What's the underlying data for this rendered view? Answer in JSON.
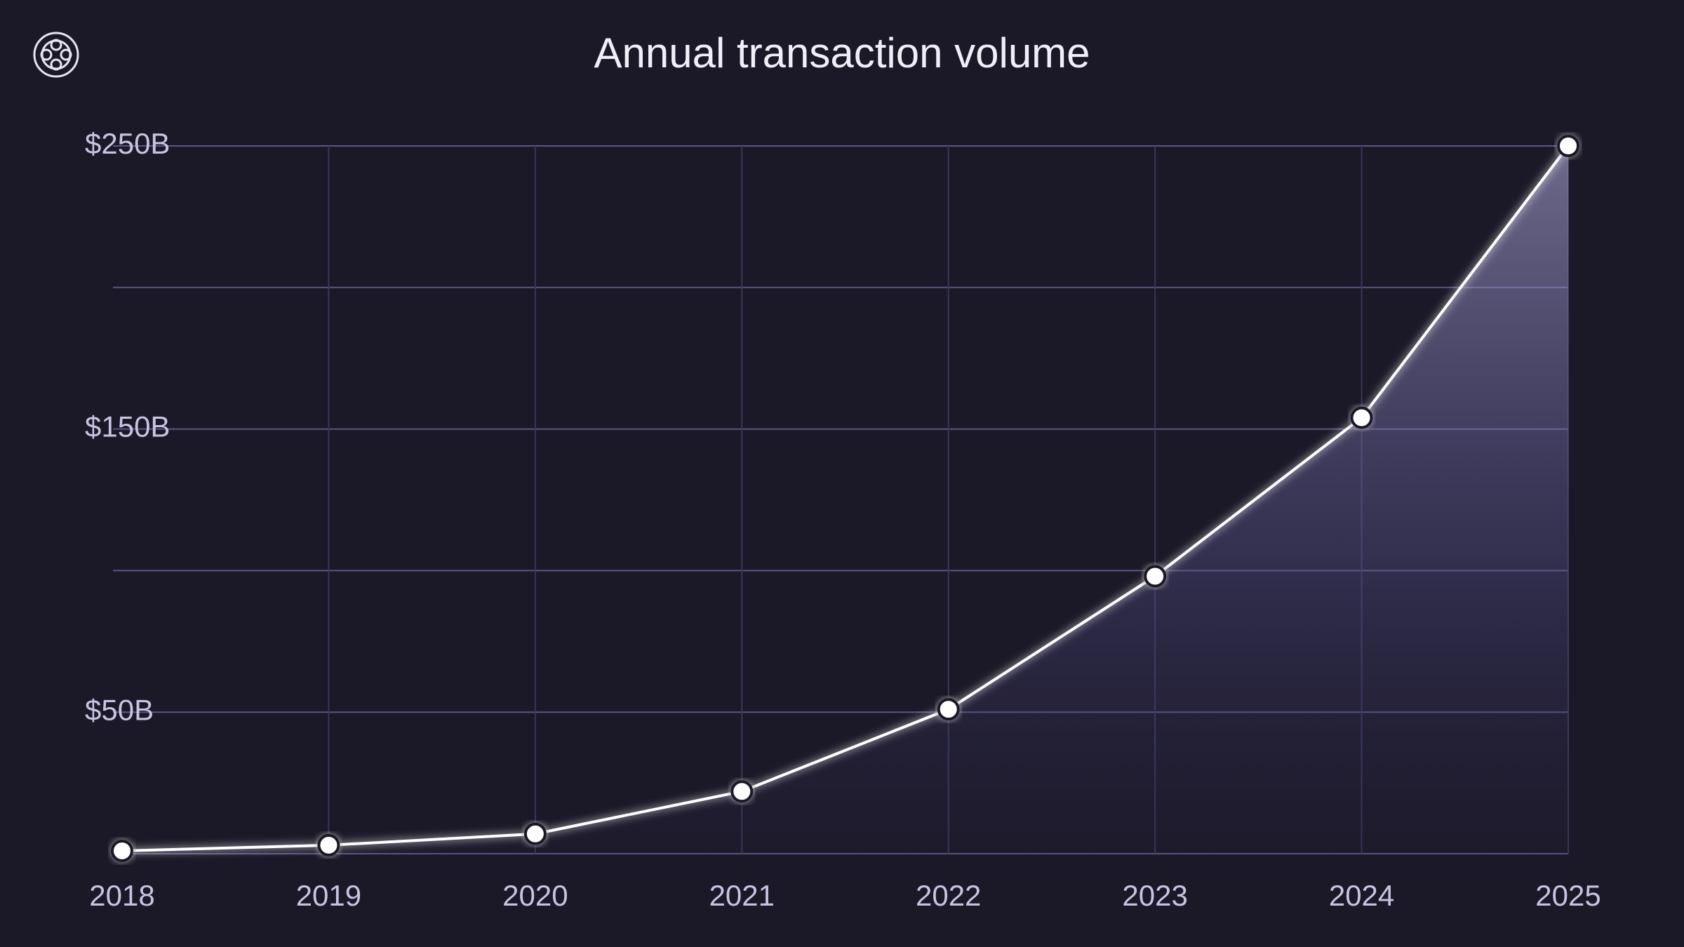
{
  "chart_data": {
    "type": "line",
    "title": "Annual transaction volume",
    "categories": [
      "2018",
      "2019",
      "2020",
      "2021",
      "2022",
      "2023",
      "2024",
      "2025"
    ],
    "values": [
      1,
      3,
      7,
      22,
      51,
      98,
      154,
      250
    ],
    "color": "#ffffff",
    "ylim": [
      0,
      250
    ],
    "yticks": [
      {
        "value": 50,
        "label": "$50B"
      },
      {
        "value": 150,
        "label": "$150B"
      },
      {
        "value": 250,
        "label": "$250B"
      }
    ],
    "minor_yticks": [
      0,
      100,
      200
    ],
    "grid": true
  }
}
